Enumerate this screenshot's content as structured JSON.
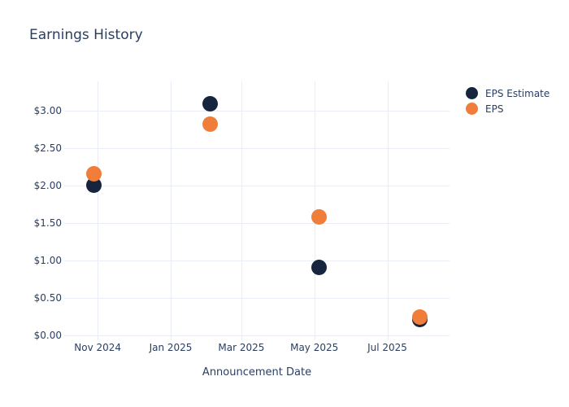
{
  "page": {
    "background_color": "#ffffff",
    "text_color": "#2a3f5f"
  },
  "chart_data": {
    "type": "scatter",
    "title": "Earnings History",
    "xlabel": "Announcement Date",
    "ylabel": "",
    "grid": true,
    "legend_position": "right",
    "marker_size": 19,
    "x_range": [
      "2024-10-04",
      "2025-08-22"
    ],
    "y_range": [
      -0.065,
      3.385
    ],
    "x_ticks": [
      {
        "date": "2024-11-01",
        "label": "Nov 2024"
      },
      {
        "date": "2025-01-01",
        "label": "Jan 2025"
      },
      {
        "date": "2025-03-01",
        "label": "Mar 2025"
      },
      {
        "date": "2025-05-01",
        "label": "May 2025"
      },
      {
        "date": "2025-07-01",
        "label": "Jul 2025"
      }
    ],
    "y_ticks": [
      {
        "value": 0.0,
        "label": "$0.00"
      },
      {
        "value": 0.5,
        "label": "$0.50"
      },
      {
        "value": 1.0,
        "label": "$1.00"
      },
      {
        "value": 1.5,
        "label": "$1.50"
      },
      {
        "value": 2.0,
        "label": "$2.00"
      },
      {
        "value": 2.5,
        "label": "$2.50"
      },
      {
        "value": 3.0,
        "label": "$3.00"
      }
    ],
    "series": [
      {
        "name": "EPS Estimate",
        "color": "#16243d",
        "points": [
          {
            "date": "2024-10-29",
            "value": 2.0
          },
          {
            "date": "2025-02-03",
            "value": 3.09
          },
          {
            "date": "2025-05-05",
            "value": 0.91
          },
          {
            "date": "2025-07-28",
            "value": 0.21
          }
        ]
      },
      {
        "name": "EPS",
        "color": "#f07e3a",
        "points": [
          {
            "date": "2024-10-29",
            "value": 2.15
          },
          {
            "date": "2025-02-03",
            "value": 2.82
          },
          {
            "date": "2025-05-05",
            "value": 1.58
          },
          {
            "date": "2025-07-28",
            "value": 0.25
          }
        ]
      }
    ],
    "colors": {
      "grid": "#e9edf5",
      "text": "#2a3f5f"
    }
  }
}
